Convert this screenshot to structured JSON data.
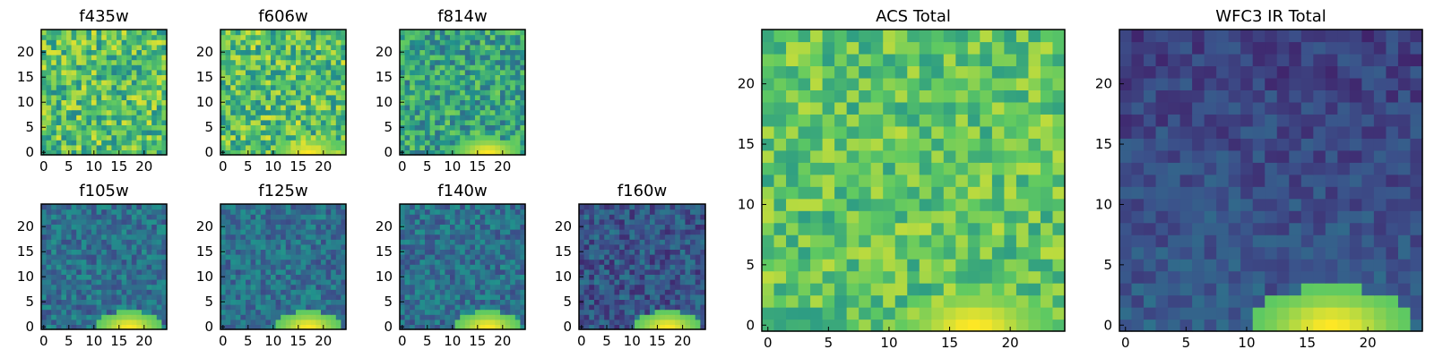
{
  "figure": {
    "panels": [
      {
        "id": "f435w",
        "title": "f435w",
        "pattern": "acs_noisy",
        "seed": 11,
        "bright_spot": false
      },
      {
        "id": "f606w",
        "title": "f606w",
        "pattern": "acs_noisy",
        "seed": 23,
        "bright_spot": true
      },
      {
        "id": "f814w",
        "title": "f814w",
        "pattern": "acs_mid",
        "seed": 37,
        "bright_spot": true
      },
      {
        "id": "f105w",
        "title": "f105w",
        "pattern": "ir",
        "seed": 41,
        "bright_spot": true
      },
      {
        "id": "f125w",
        "title": "f125w",
        "pattern": "ir",
        "seed": 53,
        "bright_spot": true
      },
      {
        "id": "f140w",
        "title": "f140w",
        "pattern": "ir",
        "seed": 67,
        "bright_spot": true
      },
      {
        "id": "f160w",
        "title": "f160w",
        "pattern": "ir_dark",
        "seed": 79,
        "bright_spot": true
      },
      {
        "id": "acs_total",
        "title": "ACS Total",
        "pattern": "acs_total",
        "seed": 97,
        "bright_spot": true
      },
      {
        "id": "wfc3_total",
        "title": "WFC3 IR Total",
        "pattern": "wfc3_total",
        "seed": 101,
        "bright_spot": true
      }
    ],
    "colormap": [
      "#440154",
      "#3b528b",
      "#21918c",
      "#5ec962",
      "#fde725"
    ]
  },
  "chart_data": [
    {
      "type": "heatmap",
      "title": "f435w",
      "grid": [
        25,
        25
      ],
      "xlim": [
        0,
        24
      ],
      "ylim": [
        0,
        24
      ],
      "xticks": [
        "0",
        "5",
        "10",
        "15",
        "20"
      ],
      "yticks": [
        "0",
        "5",
        "10",
        "15",
        "20"
      ]
    },
    {
      "type": "heatmap",
      "title": "f606w",
      "grid": [
        25,
        25
      ],
      "xlim": [
        0,
        24
      ],
      "ylim": [
        0,
        24
      ],
      "xticks": [
        "0",
        "5",
        "10",
        "15",
        "20"
      ],
      "yticks": [
        "0",
        "5",
        "10",
        "15",
        "20"
      ]
    },
    {
      "type": "heatmap",
      "title": "f814w",
      "grid": [
        25,
        25
      ],
      "xlim": [
        0,
        24
      ],
      "ylim": [
        0,
        24
      ],
      "xticks": [
        "0",
        "5",
        "10",
        "15",
        "20"
      ],
      "yticks": [
        "0",
        "5",
        "10",
        "15",
        "20"
      ]
    },
    {
      "type": "heatmap",
      "title": "f105w",
      "grid": [
        25,
        25
      ],
      "xlim": [
        0,
        24
      ],
      "ylim": [
        0,
        24
      ],
      "xticks": [
        "0",
        "5",
        "10",
        "15",
        "20"
      ],
      "yticks": [
        "0",
        "5",
        "10",
        "15",
        "20"
      ]
    },
    {
      "type": "heatmap",
      "title": "f125w",
      "grid": [
        25,
        25
      ],
      "xlim": [
        0,
        24
      ],
      "ylim": [
        0,
        24
      ],
      "xticks": [
        "0",
        "5",
        "10",
        "15",
        "20"
      ],
      "yticks": [
        "0",
        "5",
        "10",
        "15",
        "20"
      ]
    },
    {
      "type": "heatmap",
      "title": "f140w",
      "grid": [
        25,
        25
      ],
      "xlim": [
        0,
        24
      ],
      "ylim": [
        0,
        24
      ],
      "xticks": [
        "0",
        "5",
        "10",
        "15",
        "20"
      ],
      "yticks": [
        "0",
        "5",
        "10",
        "15",
        "20"
      ]
    },
    {
      "type": "heatmap",
      "title": "f160w",
      "grid": [
        25,
        25
      ],
      "xlim": [
        0,
        24
      ],
      "ylim": [
        0,
        24
      ],
      "xticks": [
        "0",
        "5",
        "10",
        "15",
        "20"
      ],
      "yticks": [
        "0",
        "5",
        "10",
        "15",
        "20"
      ]
    },
    {
      "type": "heatmap",
      "title": "ACS Total",
      "grid": [
        25,
        25
      ],
      "xlim": [
        0,
        24
      ],
      "ylim": [
        0,
        24
      ],
      "xticks": [
        "0",
        "5",
        "10",
        "15",
        "20"
      ],
      "yticks": [
        "0",
        "5",
        "10",
        "15",
        "20"
      ]
    },
    {
      "type": "heatmap",
      "title": "WFC3 IR Total",
      "grid": [
        25,
        25
      ],
      "xlim": [
        0,
        24
      ],
      "ylim": [
        0,
        24
      ],
      "xticks": [
        "0",
        "5",
        "10",
        "15",
        "20"
      ],
      "yticks": [
        "0",
        "5",
        "10",
        "15",
        "20"
      ]
    }
  ]
}
